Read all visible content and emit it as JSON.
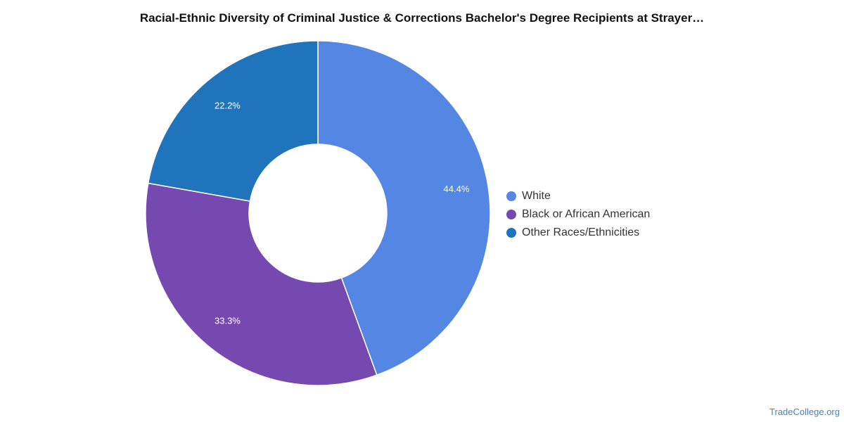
{
  "chart_data": {
    "type": "pie",
    "title": "Racial-Ethnic Diversity of Criminal Justice & Corrections Bachelor's Degree Recipients at Strayer…",
    "categories": [
      "White",
      "Black or African American",
      "Other Races/Ethnicities"
    ],
    "values": [
      44.4,
      33.3,
      22.2
    ],
    "value_labels": [
      "44.4%",
      "33.3%",
      "22.2%"
    ],
    "colors": [
      "#5387e3",
      "#7649b0",
      "#1f74bb"
    ],
    "donut": true,
    "legend_position": "right"
  },
  "watermark": "TradeCollege.org"
}
